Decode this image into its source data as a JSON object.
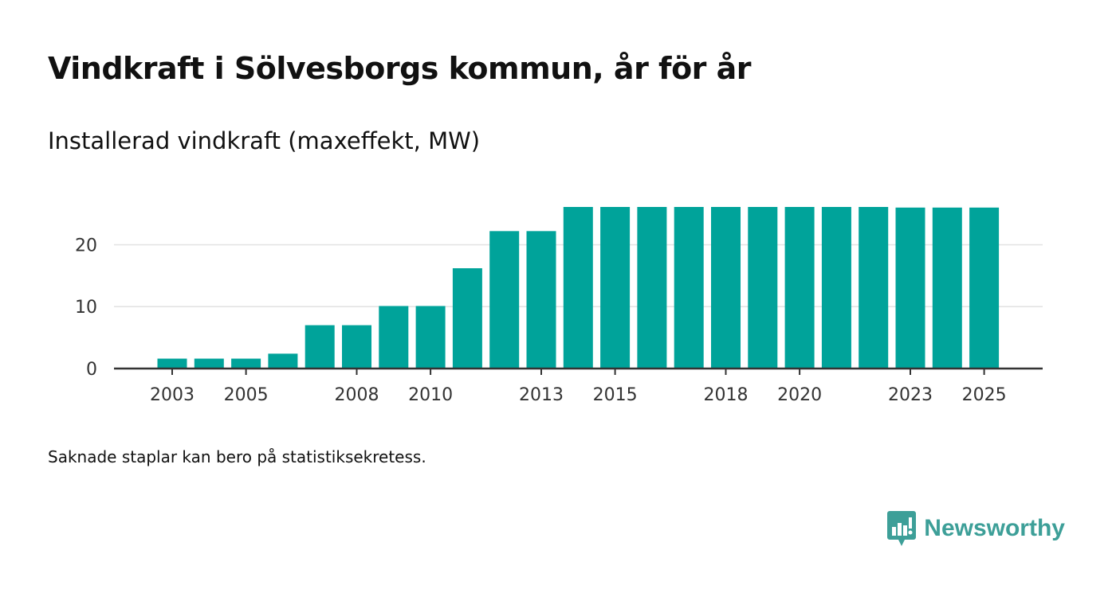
{
  "title": "Vindkraft i Sölvesborgs kommun, år för år",
  "subtitle": "Installerad vindkraft (maxeffekt, MW)",
  "note": "Saknade staplar kan bero på statistiksekretess.",
  "brand": {
    "name": "Newsworthy",
    "icon": "newsworthy-logo-icon"
  },
  "colors": {
    "bar": "#00a39a",
    "grid": "#e2e2e2",
    "axis": "#333333",
    "brand": "#3d9f98"
  },
  "chart_data": {
    "type": "bar",
    "title": "Vindkraft i Sölvesborgs kommun, år för år",
    "ylabel": "Installerad vindkraft (maxeffekt, MW)",
    "xlabel": "",
    "categories": [
      "2003",
      "2004",
      "2005",
      "2006",
      "2007",
      "2008",
      "2009",
      "2010",
      "2011",
      "2012",
      "2013",
      "2014",
      "2015",
      "2016",
      "2017",
      "2018",
      "2019",
      "2020",
      "2021",
      "2022",
      "2023",
      "2024",
      "2025"
    ],
    "values": [
      1.6,
      1.6,
      1.6,
      2.4,
      7.0,
      7.0,
      10.1,
      10.1,
      16.2,
      22.2,
      22.2,
      26.1,
      26.1,
      26.1,
      26.1,
      26.1,
      26.1,
      26.1,
      26.1,
      26.1,
      26.0,
      26.0,
      26.0
    ],
    "x_tick_labels": [
      "2003",
      "2005",
      "2008",
      "2010",
      "2013",
      "2015",
      "2018",
      "2020",
      "2023",
      "2025"
    ],
    "y_ticks": [
      0,
      10,
      20
    ],
    "ylim": [
      0,
      26.1
    ],
    "grid": true
  }
}
